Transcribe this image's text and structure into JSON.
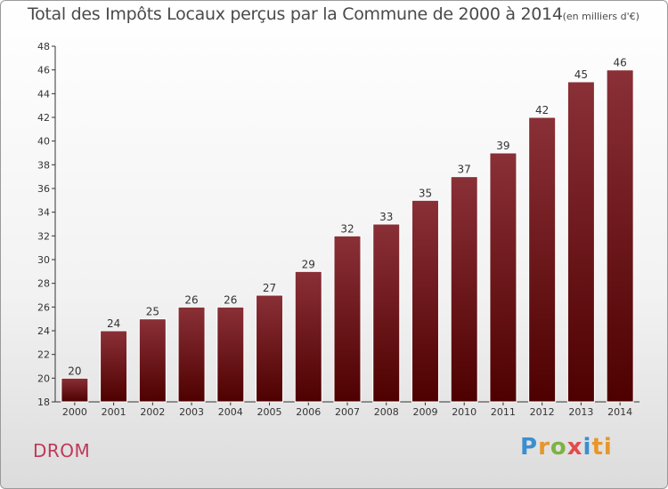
{
  "title": "Total des Impôts Locaux perçus par la Commune de 2000 à 2014",
  "unit": "(en milliers d'€)",
  "commune": "DROM",
  "logo": "Proxiti",
  "colors": {
    "bar_top": "#8a3037",
    "bar_bottom": "#4e0000",
    "axis": "#333333",
    "grid": "#cccccc",
    "commune": "#c0395a"
  },
  "chart_data": {
    "type": "bar",
    "title": "Total des Impôts Locaux perçus par la Commune de 2000 à 2014",
    "xlabel": "",
    "ylabel": "",
    "ylim": [
      18,
      48
    ],
    "yticks": [
      18,
      20,
      22,
      24,
      26,
      28,
      30,
      32,
      34,
      36,
      38,
      40,
      42,
      44,
      46,
      48
    ],
    "categories": [
      "2000",
      "2001",
      "2002",
      "2003",
      "2004",
      "2005",
      "2006",
      "2007",
      "2008",
      "2009",
      "2010",
      "2011",
      "2012",
      "2013",
      "2014"
    ],
    "values": [
      20,
      24,
      25,
      26,
      26,
      27,
      29,
      32,
      33,
      35,
      37,
      39,
      42,
      45,
      46
    ],
    "grid": false,
    "data_labels": true
  }
}
